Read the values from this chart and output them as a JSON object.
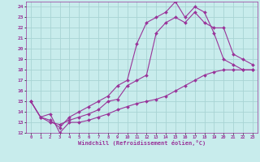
{
  "xlabel": "Windchill (Refroidissement éolien,°C)",
  "bg_color": "#c8ecec",
  "line_color": "#993399",
  "grid_color": "#a8d4d4",
  "xlim": [
    -0.5,
    23.5
  ],
  "ylim": [
    12,
    24.5
  ],
  "yticks": [
    12,
    13,
    14,
    15,
    16,
    17,
    18,
    19,
    20,
    21,
    22,
    23,
    24
  ],
  "xticks": [
    0,
    1,
    2,
    3,
    4,
    5,
    6,
    7,
    8,
    9,
    10,
    11,
    12,
    13,
    14,
    15,
    16,
    17,
    18,
    19,
    20,
    21,
    22,
    23
  ],
  "series": [
    {
      "x": [
        0,
        1,
        2,
        3,
        4,
        5,
        6,
        7,
        8,
        9,
        10,
        11,
        12,
        13,
        14,
        15,
        16,
        17,
        18,
        19,
        20,
        21,
        22,
        23
      ],
      "y": [
        15,
        13.5,
        13.8,
        12.0,
        13.0,
        13.0,
        13.2,
        13.5,
        13.8,
        14.2,
        14.5,
        14.8,
        15.0,
        15.2,
        15.5,
        16.0,
        16.5,
        17.0,
        17.5,
        17.8,
        18.0,
        18.0,
        18.0,
        18.0
      ]
    },
    {
      "x": [
        0,
        1,
        2,
        3,
        4,
        5,
        6,
        7,
        8,
        9,
        10,
        11,
        12,
        13,
        14,
        15,
        16,
        17,
        18,
        19,
        20,
        21,
        22,
        23
      ],
      "y": [
        15.0,
        13.5,
        13.0,
        12.8,
        13.2,
        13.5,
        13.8,
        14.2,
        15.0,
        15.2,
        16.5,
        17.0,
        17.5,
        21.5,
        22.5,
        23.0,
        22.5,
        23.5,
        22.5,
        22.0,
        22.0,
        19.5,
        19.0,
        18.5
      ]
    },
    {
      "x": [
        0,
        1,
        2,
        3,
        4,
        5,
        6,
        7,
        8,
        9,
        10,
        11,
        12,
        13,
        14,
        15,
        16,
        17,
        18,
        19,
        20,
        21,
        22,
        23
      ],
      "y": [
        15.0,
        13.5,
        13.2,
        12.5,
        13.5,
        14.0,
        14.5,
        15.0,
        15.5,
        16.5,
        17.0,
        20.5,
        22.5,
        23.0,
        23.5,
        24.5,
        23.0,
        24.0,
        23.5,
        21.5,
        19.0,
        18.5,
        18.0,
        18.0
      ]
    }
  ]
}
